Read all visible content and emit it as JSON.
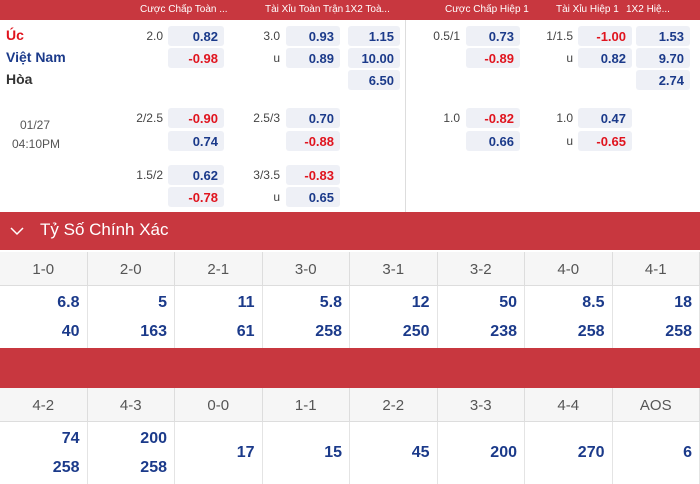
{
  "header": {
    "columns": [
      "Cược Chấp Toàn ...",
      "Tài Xỉu Toàn Trận",
      "1X2 Toà...",
      "Cược Chấp Hiệp 1",
      "Tài Xỉu Hiệp 1",
      "1X2 Hiệ..."
    ]
  },
  "match": {
    "teams": [
      "Úc",
      "Việt Nam",
      "Hòa"
    ],
    "date": "01/27",
    "time": "04:10PM"
  },
  "blocks": [
    {
      "ft_hcp": {
        "line": "2.0",
        "home": "0.82",
        "away": "-0.98"
      },
      "ft_ou": {
        "line": "3.0",
        "over": "0.93",
        "under_label": "u",
        "under": "0.89"
      },
      "ft_1x2": [
        "1.15",
        "10.00",
        "6.50"
      ],
      "h1_hcp": {
        "line": "0.5/1",
        "home": "0.73",
        "away": "-0.89"
      },
      "h1_ou": {
        "line": "1/1.5",
        "over": "-1.00",
        "under_label": "u",
        "under": "0.82"
      },
      "h1_1x2": [
        "1.53",
        "9.70",
        "2.74"
      ]
    },
    {
      "ft_hcp": {
        "line": "2/2.5",
        "home": "-0.90",
        "away": "0.74"
      },
      "ft_ou": {
        "line": "2.5/3",
        "over": "0.70",
        "under": "-0.88"
      },
      "h1_hcp": {
        "line": "1.0",
        "home": "-0.82",
        "away": "0.66"
      },
      "h1_ou": {
        "line": "1.0",
        "over": "0.47",
        "under_label": "u",
        "under": "-0.65"
      }
    },
    {
      "ft_hcp": {
        "line": "1.5/2",
        "home": "0.62",
        "away": "-0.78"
      },
      "ft_ou": {
        "line": "3/3.5",
        "over": "-0.83",
        "under_label": "u",
        "under": "0.65"
      }
    }
  ],
  "scores": {
    "title": "Tỷ Số Chính Xác",
    "rows": [
      [
        {
          "score": "1-0",
          "odds": [
            "6.8",
            "40"
          ]
        },
        {
          "score": "2-0",
          "odds": [
            "5",
            "163"
          ]
        },
        {
          "score": "2-1",
          "odds": [
            "11",
            "61"
          ]
        },
        {
          "score": "3-0",
          "odds": [
            "5.8",
            "258"
          ]
        },
        {
          "score": "3-1",
          "odds": [
            "12",
            "250"
          ]
        },
        {
          "score": "3-2",
          "odds": [
            "50",
            "238"
          ]
        },
        {
          "score": "4-0",
          "odds": [
            "8.5",
            "258"
          ]
        },
        {
          "score": "4-1",
          "odds": [
            "18",
            "258"
          ]
        }
      ],
      [
        {
          "score": "4-2",
          "odds": [
            "74",
            "258"
          ]
        },
        {
          "score": "4-3",
          "odds": [
            "200",
            "258"
          ]
        },
        {
          "score": "0-0",
          "odds": [
            "17"
          ]
        },
        {
          "score": "1-1",
          "odds": [
            "15"
          ]
        },
        {
          "score": "2-2",
          "odds": [
            "45"
          ]
        },
        {
          "score": "3-3",
          "odds": [
            "200"
          ]
        },
        {
          "score": "4-4",
          "odds": [
            "270"
          ]
        },
        {
          "score": "AOS",
          "odds": [
            "6"
          ]
        }
      ]
    ]
  }
}
